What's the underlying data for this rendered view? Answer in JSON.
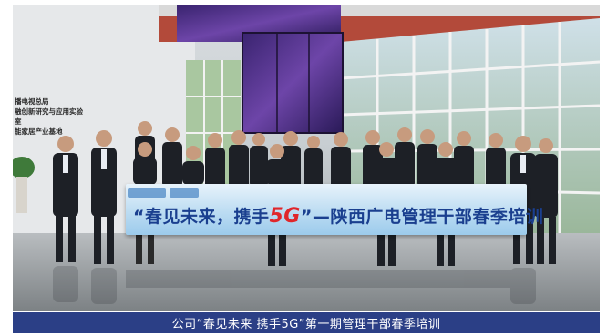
{
  "photo": {
    "wall_sign_lines": [
      "播电视总局",
      "融创新研究与应用实验室",
      "能家居产业基地"
    ],
    "banner": {
      "part1": "“春见未来，携手",
      "part2": "5G",
      "part3": "”—陕西广电管理干部春季培训"
    }
  },
  "caption": {
    "text": "公司“春见未来 携手5G”第一期管理干部春季培训"
  },
  "colors": {
    "caption_bar": "#2b3f86",
    "banner_text": "#1a3f8f",
    "banner_5g": "#e0262b"
  }
}
